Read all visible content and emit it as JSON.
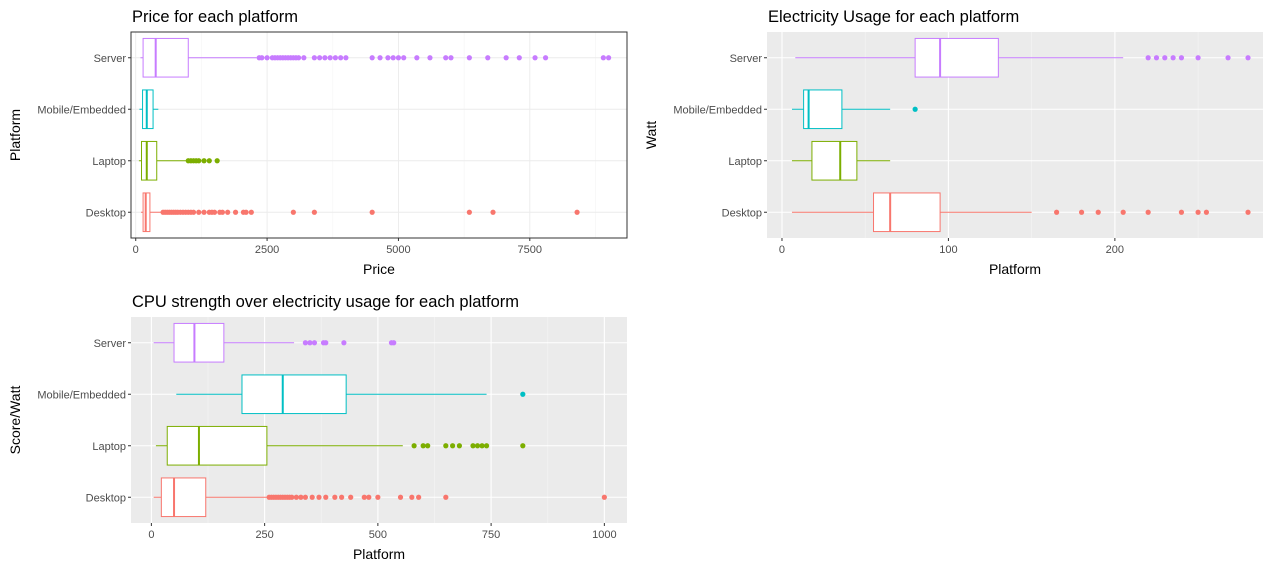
{
  "chart_data": [
    {
      "type": "boxplot",
      "orientation": "horizontal",
      "title": "Price for each platform",
      "xlabel": "Price",
      "ylabel": "Platform",
      "theme": "bw",
      "xlim": [
        -90,
        9350
      ],
      "xticks": [
        0,
        2500,
        5000,
        7500
      ],
      "xtick_labels": [
        "0",
        "2500",
        "5000",
        "7500"
      ],
      "categories": [
        "Desktop",
        "Laptop",
        "Mobile/Embedded",
        "Server"
      ],
      "colors": [
        "#f8766d",
        "#7cae00",
        "#00bfc4",
        "#c77cff"
      ],
      "boxes": [
        {
          "category": "Desktop",
          "whisker_low": 100,
          "q1": 140,
          "median": 190,
          "q3": 270,
          "whisker_high": 500,
          "outliers": [
            520,
            560,
            600,
            640,
            680,
            720,
            760,
            800,
            850,
            900,
            950,
            1000,
            1050,
            1100,
            1200,
            1300,
            1400,
            1450,
            1500,
            1600,
            1650,
            1750,
            1900,
            2050,
            2100,
            2200,
            3000,
            3400,
            4500,
            6350,
            6800,
            8400
          ]
        },
        {
          "category": "Laptop",
          "whisker_low": 60,
          "q1": 110,
          "median": 210,
          "q3": 400,
          "whisker_high": 1000,
          "outliers": [
            1000,
            1050,
            1100,
            1150,
            1200,
            1300,
            1400,
            1550
          ]
        },
        {
          "category": "Mobile/Embedded",
          "whisker_low": 70,
          "q1": 130,
          "median": 210,
          "q3": 330,
          "whisker_high": 430,
          "outliers": []
        },
        {
          "category": "Server",
          "whisker_low": 90,
          "q1": 140,
          "median": 380,
          "q3": 1000,
          "whisker_high": 2300,
          "outliers": [
            2350,
            2400,
            2500,
            2600,
            2650,
            2700,
            2750,
            2800,
            2850,
            2900,
            2950,
            3000,
            3050,
            3100,
            3200,
            3400,
            3500,
            3600,
            3700,
            3800,
            3900,
            4000,
            4500,
            4650,
            4800,
            4900,
            5000,
            5100,
            5350,
            5600,
            5900,
            6000,
            6350,
            6700,
            7050,
            7300,
            7600,
            7800,
            8900,
            9000
          ]
        }
      ]
    },
    {
      "type": "boxplot",
      "orientation": "horizontal",
      "title": "Electricity Usage for each platform",
      "xlabel": "Platform",
      "ylabel": "Watt",
      "theme": "grey",
      "xlim": [
        -9,
        289
      ],
      "xticks": [
        0,
        100,
        200
      ],
      "xtick_labels": [
        "0",
        "100",
        "200"
      ],
      "categories": [
        "Desktop",
        "Laptop",
        "Mobile/Embedded",
        "Server"
      ],
      "colors": [
        "#f8766d",
        "#7cae00",
        "#00bfc4",
        "#c77cff"
      ],
      "boxes": [
        {
          "category": "Desktop",
          "whisker_low": 6,
          "q1": 55,
          "median": 65,
          "q3": 95,
          "whisker_high": 150,
          "outliers": [
            165,
            180,
            190,
            205,
            220,
            240,
            250,
            255,
            280
          ]
        },
        {
          "category": "Laptop",
          "whisker_low": 6,
          "q1": 18,
          "median": 35,
          "q3": 45,
          "whisker_high": 65,
          "outliers": []
        },
        {
          "category": "Mobile/Embedded",
          "whisker_low": 6,
          "q1": 13,
          "median": 16,
          "q3": 36,
          "whisker_high": 65,
          "outliers": [
            80
          ]
        },
        {
          "category": "Server",
          "whisker_low": 8,
          "q1": 80,
          "median": 95,
          "q3": 130,
          "whisker_high": 205,
          "outliers": [
            220,
            225,
            230,
            235,
            240,
            250,
            268,
            280
          ]
        }
      ]
    },
    {
      "type": "boxplot",
      "orientation": "horizontal",
      "title": "CPU strength over electricity usage for each platform",
      "xlabel": "Platform",
      "ylabel": "Score/Watt",
      "theme": "grey",
      "xlim": [
        -45,
        1050
      ],
      "xticks": [
        0,
        250,
        500,
        750,
        1000
      ],
      "xtick_labels": [
        "0",
        "250",
        "500",
        "750",
        "1000"
      ],
      "categories": [
        "Desktop",
        "Laptop",
        "Mobile/Embedded",
        "Server"
      ],
      "colors": [
        "#f8766d",
        "#7cae00",
        "#00bfc4",
        "#c77cff"
      ],
      "boxes": [
        {
          "category": "Desktop",
          "whisker_low": 5,
          "q1": 22,
          "median": 50,
          "q3": 120,
          "whisker_high": 255,
          "outliers": [
            260,
            265,
            270,
            275,
            280,
            285,
            290,
            295,
            300,
            305,
            310,
            320,
            330,
            340,
            355,
            370,
            385,
            405,
            420,
            440,
            470,
            480,
            500,
            550,
            575,
            590,
            650,
            1000
          ]
        },
        {
          "category": "Laptop",
          "whisker_low": 10,
          "q1": 35,
          "median": 105,
          "q3": 255,
          "whisker_high": 555,
          "outliers": [
            580,
            600,
            610,
            650,
            665,
            680,
            710,
            720,
            730,
            740,
            820
          ]
        },
        {
          "category": "Mobile/Embedded",
          "whisker_low": 55,
          "q1": 200,
          "median": 290,
          "q3": 430,
          "whisker_high": 740,
          "outliers": [
            820
          ]
        },
        {
          "category": "Server",
          "whisker_low": 5,
          "q1": 50,
          "median": 95,
          "q3": 160,
          "whisker_high": 315,
          "outliers": [
            340,
            350,
            360,
            380,
            385,
            425,
            530,
            535
          ]
        }
      ]
    }
  ]
}
